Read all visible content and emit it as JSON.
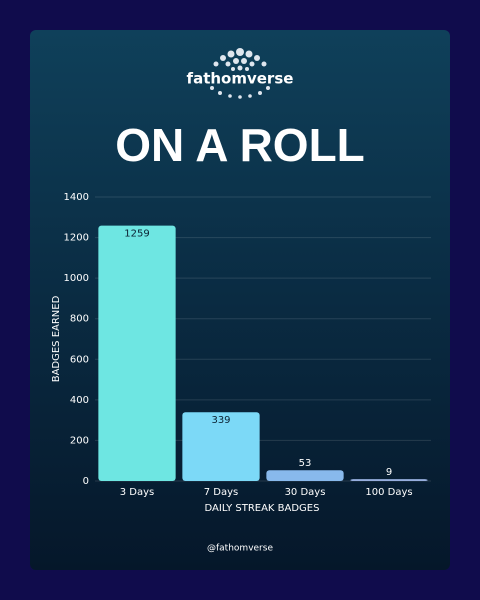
{
  "brand": "fathomverse",
  "handle": "@fathomverse",
  "chart_data": {
    "type": "bar",
    "title": "ON A ROLL",
    "x_label": "DAILY STREAK BADGES",
    "y_label": "BADGES EARNED",
    "categories": [
      "3 Days",
      "7 Days",
      "30 Days",
      "100 Days"
    ],
    "values": [
      1259,
      339,
      53,
      9
    ],
    "colors": [
      "#6ee6e2",
      "#7cd9f7",
      "#88b9ec",
      "#97aede"
    ],
    "ylim": [
      0,
      1400
    ],
    "yticks": [
      0,
      200,
      400,
      600,
      800,
      1000,
      1200,
      1400
    ],
    "grid": true
  }
}
